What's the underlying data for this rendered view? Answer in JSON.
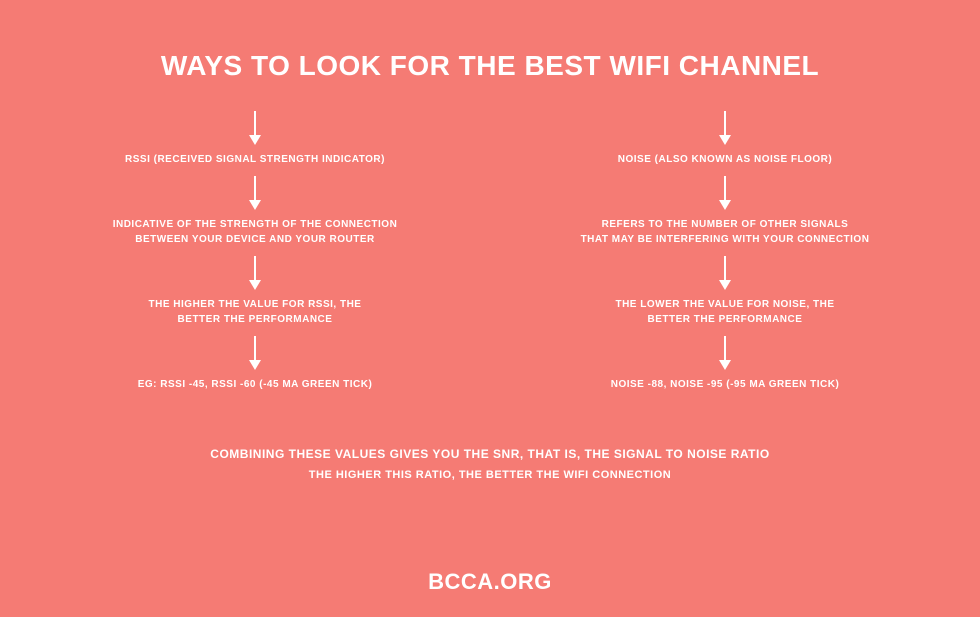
{
  "title": "WAYS TO LOOK FOR THE BEST WIFI CHANNEL",
  "colors": {
    "background": "#f57b74",
    "text": "#ffffff",
    "arrow": "#ffffff"
  },
  "left_column": {
    "nodes": [
      "RSSI (RECEIVED SIGNAL STRENGTH INDICATOR)",
      "INDICATIVE OF THE STRENGTH OF THE CONNECTION\nBETWEEN YOUR DEVICE AND YOUR ROUTER",
      "THE HIGHER THE VALUE FOR RSSI, THE\nBETTER THE PERFORMANCE",
      "EG: RSSI -45, RSSI -60 (-45 MA GREEN TICK)"
    ]
  },
  "right_column": {
    "nodes": [
      "NOISE (ALSO KNOWN AS NOISE FLOOR)",
      "REFERS TO THE NUMBER OF OTHER SIGNALS\nTHAT MAY BE INTERFERING WITH YOUR CONNECTION",
      "THE LOWER THE VALUE FOR NOISE, THE\nBETTER THE PERFORMANCE",
      "NOISE -88, NOISE -95 (-95 MA GREEN TICK)"
    ]
  },
  "footer": {
    "line1": "COMBINING THESE VALUES GIVES YOU THE SNR, THAT IS, THE SIGNAL TO NOISE RATIO",
    "line2": "THE HIGHER THIS RATIO, THE BETTER THE WIFI CONNECTION"
  },
  "brand": "BCCA.ORG",
  "structure": {
    "type": "flowchart",
    "layout": "two-column-vertical",
    "node_fontsize": 10,
    "title_fontsize": 28,
    "footer_fontsize": 12,
    "brand_fontsize": 22,
    "arrow_length": 32,
    "arrow_color": "#ffffff"
  }
}
